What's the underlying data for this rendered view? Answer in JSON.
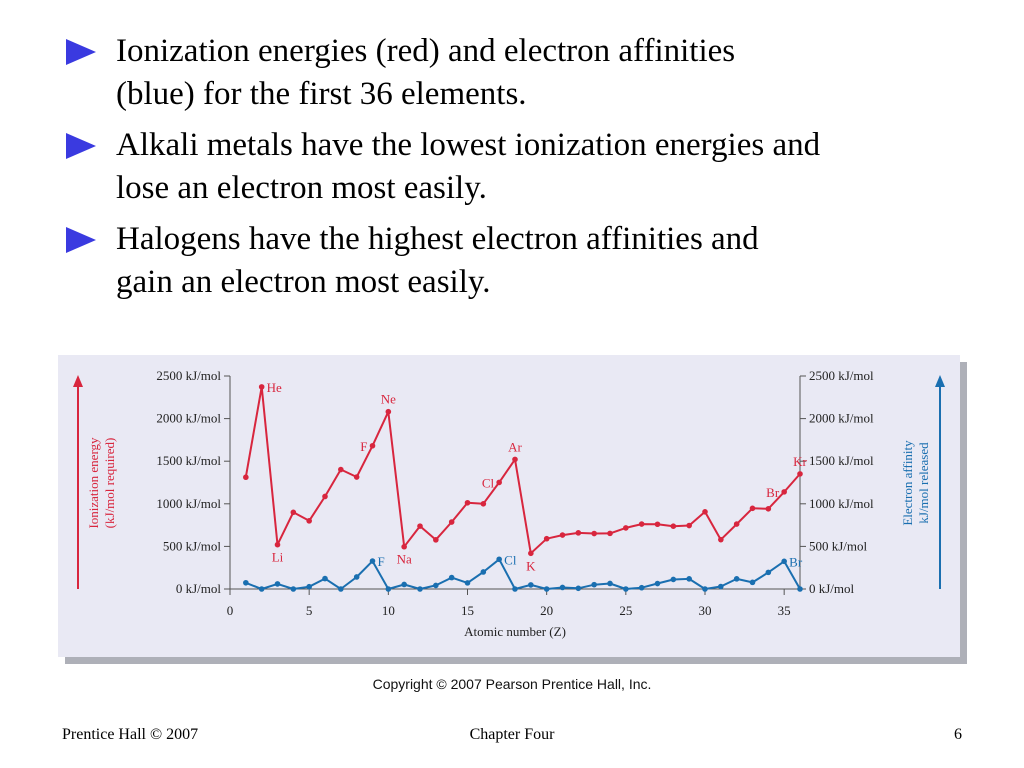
{
  "bullets": [
    {
      "lines": [
        "Ionization energies (red) and electron affinities",
        "(blue) for the first 36 elements."
      ]
    },
    {
      "lines": [
        "Alkali metals have the lowest ionization energies and",
        "lose an electron most easily."
      ]
    },
    {
      "lines": [
        "Halogens have the highest electron affinities and",
        "gain an electron most easily."
      ]
    }
  ],
  "colors": {
    "bullet_arrow": "#3a3ae0",
    "ionization": "#d8263e",
    "affinity": "#1a6fb0",
    "panel": "#e9e9f4"
  },
  "chart_data": {
    "type": "line",
    "xlabel": "Atomic number (Z)",
    "left_axis_label": [
      "Ionization energy",
      "(kJ/mol required)"
    ],
    "right_axis_label": [
      "Electron affinity",
      "kJ/mol released"
    ],
    "xlim": [
      0,
      36
    ],
    "ylim": [
      0,
      2500
    ],
    "x_ticks": [
      0,
      5,
      10,
      15,
      20,
      25,
      30,
      35
    ],
    "y_ticks": [
      {
        "value": 0,
        "label": "0 kJ/mol"
      },
      {
        "value": 500,
        "label": "500 kJ/mol"
      },
      {
        "value": 1000,
        "label": "1000 kJ/mol"
      },
      {
        "value": 1500,
        "label": "1500 kJ/mol"
      },
      {
        "value": 2000,
        "label": "2000 kJ/mol"
      },
      {
        "value": 2500,
        "label": "2500 kJ/mol"
      }
    ],
    "grid": false,
    "series": [
      {
        "key": "ionization",
        "x": [
          1,
          2,
          3,
          4,
          5,
          6,
          7,
          8,
          9,
          10,
          11,
          12,
          13,
          14,
          15,
          16,
          17,
          18,
          19,
          20,
          21,
          22,
          23,
          24,
          25,
          26,
          27,
          28,
          29,
          30,
          31,
          32,
          33,
          34,
          35,
          36
        ],
        "values": [
          1312,
          2372,
          520,
          900,
          800,
          1086,
          1402,
          1314,
          1681,
          2081,
          496,
          738,
          577,
          786,
          1012,
          1000,
          1251,
          1521,
          419,
          590,
          633,
          659,
          651,
          653,
          717,
          762,
          760,
          737,
          745,
          906,
          579,
          762,
          947,
          941,
          1140,
          1351
        ],
        "labels": [
          {
            "x": 2,
            "text": "He",
            "pos": "right"
          },
          {
            "x": 3,
            "text": "Li",
            "pos": "below"
          },
          {
            "x": 9,
            "text": "F",
            "pos": "left"
          },
          {
            "x": 10,
            "text": "Ne",
            "pos": "above"
          },
          {
            "x": 11,
            "text": "Na",
            "pos": "below"
          },
          {
            "x": 17,
            "text": "Cl",
            "pos": "left"
          },
          {
            "x": 18,
            "text": "Ar",
            "pos": "above"
          },
          {
            "x": 19,
            "text": "K",
            "pos": "below"
          },
          {
            "x": 35,
            "text": "Br",
            "pos": "left"
          },
          {
            "x": 36,
            "text": "Kr",
            "pos": "above"
          }
        ]
      },
      {
        "key": "affinity",
        "x": [
          1,
          2,
          3,
          4,
          5,
          6,
          7,
          8,
          9,
          10,
          11,
          12,
          13,
          14,
          15,
          16,
          17,
          18,
          19,
          20,
          21,
          22,
          23,
          24,
          25,
          26,
          27,
          28,
          29,
          30,
          31,
          32,
          33,
          34,
          35,
          36
        ],
        "values": [
          73,
          0,
          60,
          0,
          27,
          122,
          0,
          141,
          328,
          0,
          53,
          0,
          42,
          134,
          72,
          200,
          349,
          0,
          48,
          0,
          18,
          8,
          51,
          65,
          0,
          15,
          64,
          112,
          119,
          0,
          29,
          119,
          78,
          195,
          325,
          0
        ],
        "labels": [
          {
            "x": 9,
            "text": "F",
            "pos": "right"
          },
          {
            "x": 17,
            "text": "Cl",
            "pos": "right"
          },
          {
            "x": 35,
            "text": "Br",
            "pos": "right"
          }
        ]
      }
    ]
  },
  "copyright": "Copyright © 2007 Pearson Prentice Hall, Inc.",
  "footer": {
    "left": "Prentice Hall © 2007",
    "center": "Chapter Four",
    "right": "6"
  }
}
